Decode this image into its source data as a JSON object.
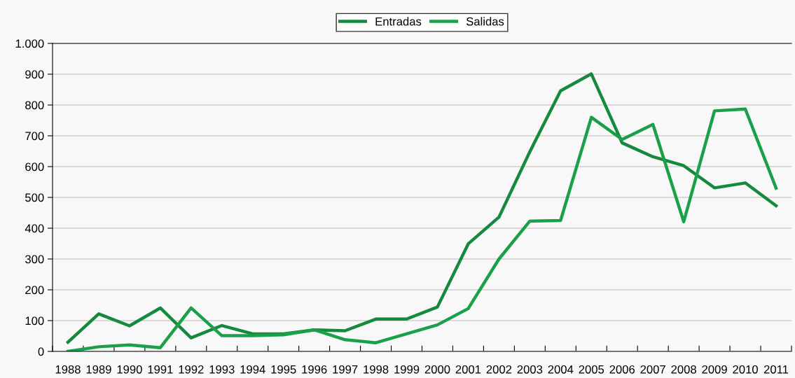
{
  "chart_data": {
    "type": "line",
    "categories": [
      "1988",
      "1989",
      "1990",
      "1991",
      "1992",
      "1993",
      "1994",
      "1995",
      "1996",
      "1997",
      "1998",
      "1999",
      "2000",
      "2001",
      "2002",
      "2003",
      "2004",
      "2005",
      "2006",
      "2007",
      "2008",
      "2009",
      "2010",
      "2011"
    ],
    "series": [
      {
        "name": "Entradas",
        "color": "#158a3e",
        "values": [
          30,
          122,
          83,
          141,
          44,
          84,
          57,
          57,
          70,
          67,
          105,
          105,
          144,
          349,
          436,
          648,
          846,
          901,
          677,
          632,
          603,
          531,
          547,
          473
        ]
      },
      {
        "name": "Salidas",
        "color": "#1ba04a",
        "values": [
          0,
          15,
          21,
          12,
          141,
          51,
          51,
          54,
          70,
          38,
          28,
          57,
          86,
          139,
          300,
          423,
          425,
          760,
          688,
          737,
          421,
          781,
          787,
          530
        ]
      }
    ],
    "ylim": [
      0,
      1000
    ],
    "yticks": [
      0,
      100,
      200,
      300,
      400,
      500,
      600,
      700,
      800,
      900,
      {
        "value": 1000,
        "label": "1.000"
      }
    ],
    "grid": "y",
    "legend": "top",
    "marker": "none",
    "line_style": "solid"
  }
}
